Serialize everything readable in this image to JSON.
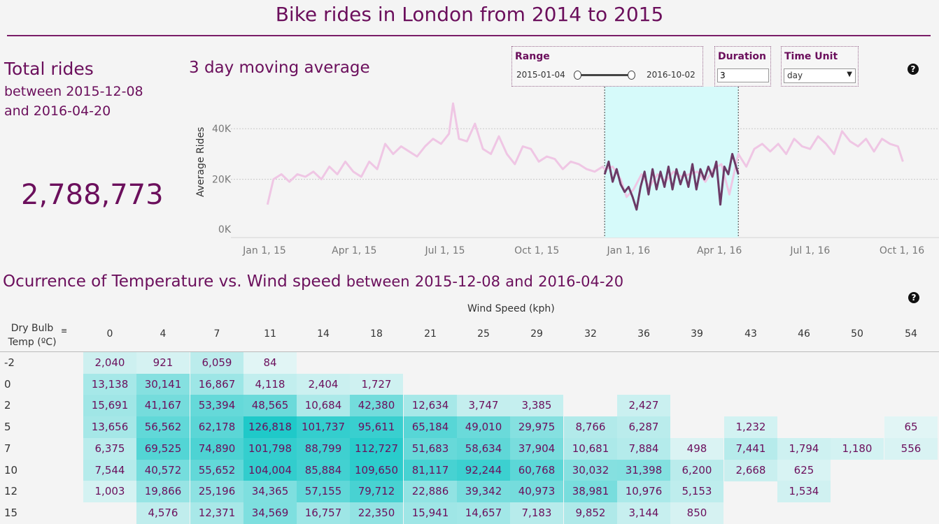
{
  "header": {
    "title": "Bike rides in London from 2014 to 2015"
  },
  "kpi": {
    "heading": "Total rides",
    "between_label": "between",
    "start_date": "2015-12-08",
    "and_label": "and",
    "end_date": "2016-04-20",
    "total": "2,788,773"
  },
  "controls": {
    "range": {
      "label": "Range",
      "start": "2015-01-04",
      "end": "2016-10-02"
    },
    "duration": {
      "label": "Duration",
      "value": "3"
    },
    "time_unit": {
      "label": "Time Unit",
      "value": "day"
    }
  },
  "heatmap_title": {
    "main": "Ocurrence of Temperature vs. Wind speed",
    "between": "between",
    "start": "2015-12-08",
    "and": "and",
    "end": "2016-04-20"
  },
  "colors": {
    "accent": "#6b0f5c",
    "highlight_band": "#d6fafa",
    "line_light": "#efc6e4",
    "line_dark": "#6b3a66",
    "heat_max": "#1fc9c9"
  },
  "chart_data": [
    {
      "type": "line",
      "title": "3 day moving average",
      "ylabel": "Average Rides",
      "xlabel": "",
      "ylim": [
        0,
        50000
      ],
      "y_ticks": [
        "0K",
        "20K",
        "40K"
      ],
      "x_ticks": [
        "Jan 1, 15",
        "Apr 1, 15",
        "Jul 1, 15",
        "Oct 1, 15",
        "Jan 1, 16",
        "Apr 1, 16",
        "Jul 1, 16",
        "Oct 1, 16"
      ],
      "grid": true,
      "highlight_range": [
        "2015-12-08",
        "2016-04-20"
      ],
      "series": [
        {
          "x": [
            "2015-01-04",
            "2015-01-10",
            "2015-01-18",
            "2015-01-26",
            "2015-02-03",
            "2015-02-11",
            "2015-02-19",
            "2015-02-27",
            "2015-03-07",
            "2015-03-15",
            "2015-03-23",
            "2015-03-31",
            "2015-04-08",
            "2015-04-16",
            "2015-04-24",
            "2015-05-02",
            "2015-05-10",
            "2015-05-18",
            "2015-05-26",
            "2015-06-03",
            "2015-06-11",
            "2015-06-19",
            "2015-06-27",
            "2015-07-05",
            "2015-07-09",
            "2015-07-15",
            "2015-07-23",
            "2015-07-31",
            "2015-08-08",
            "2015-08-16",
            "2015-08-24",
            "2015-09-01",
            "2015-09-09",
            "2015-09-17",
            "2015-09-25",
            "2015-10-03",
            "2015-10-11",
            "2015-10-19",
            "2015-10-27",
            "2015-11-04",
            "2015-11-12",
            "2015-11-20",
            "2015-11-28",
            "2015-12-06",
            "2015-12-08",
            "2015-12-16",
            "2015-12-24",
            "2015-12-30",
            "2016-01-06",
            "2016-01-14",
            "2016-01-22",
            "2016-01-30",
            "2016-02-07",
            "2016-02-15",
            "2016-02-23",
            "2016-03-02",
            "2016-03-10",
            "2016-03-18",
            "2016-03-26",
            "2016-04-03",
            "2016-04-11",
            "2016-04-20",
            "2016-04-28",
            "2016-05-06",
            "2016-05-14",
            "2016-05-22",
            "2016-05-30",
            "2016-06-07",
            "2016-06-15",
            "2016-06-23",
            "2016-07-01",
            "2016-07-09",
            "2016-07-17",
            "2016-07-25",
            "2016-08-02",
            "2016-08-10",
            "2016-08-18",
            "2016-08-26",
            "2016-09-03",
            "2016-09-11",
            "2016-09-19",
            "2016-09-27",
            "2016-10-02"
          ],
          "values": [
            10000,
            20000,
            22000,
            19000,
            22000,
            21000,
            23000,
            20000,
            25000,
            22000,
            27000,
            23000,
            21000,
            27000,
            24000,
            34000,
            30000,
            33000,
            31000,
            29000,
            33000,
            36000,
            34000,
            38000,
            50000,
            36000,
            35000,
            42000,
            32000,
            30000,
            37000,
            30000,
            26000,
            33000,
            32000,
            27000,
            29000,
            28000,
            24000,
            27000,
            26000,
            24000,
            23000,
            25000,
            24000,
            25000,
            20000,
            13000,
            16000,
            22000,
            17000,
            22000,
            19000,
            23000,
            21000,
            22000,
            23000,
            19000,
            24000,
            26000,
            14000,
            30000,
            25000,
            32000,
            34000,
            31000,
            34000,
            30000,
            36000,
            33000,
            32000,
            37000,
            34000,
            30000,
            39000,
            35000,
            33000,
            36000,
            31000,
            36000,
            34000,
            33000,
            27000
          ],
          "highlight_x": [
            "2015-12-08",
            "2015-12-12",
            "2015-12-16",
            "2015-12-20",
            "2015-12-24",
            "2015-12-28",
            "2016-01-01",
            "2016-01-05",
            "2016-01-09",
            "2016-01-13",
            "2016-01-17",
            "2016-01-21",
            "2016-01-25",
            "2016-01-29",
            "2016-02-02",
            "2016-02-06",
            "2016-02-10",
            "2016-02-14",
            "2016-02-18",
            "2016-02-22",
            "2016-02-26",
            "2016-03-01",
            "2016-03-05",
            "2016-03-09",
            "2016-03-13",
            "2016-03-17",
            "2016-03-21",
            "2016-03-25",
            "2016-03-29",
            "2016-04-02",
            "2016-04-06",
            "2016-04-10",
            "2016-04-14",
            "2016-04-20"
          ],
          "highlight_values": [
            22000,
            27000,
            19000,
            24000,
            18000,
            15000,
            17000,
            13000,
            8000,
            17000,
            23000,
            14000,
            24000,
            16000,
            23000,
            17000,
            25000,
            16000,
            24000,
            18000,
            23000,
            17000,
            26000,
            16000,
            24000,
            20000,
            25000,
            21000,
            27000,
            10000,
            25000,
            22000,
            30000,
            22000
          ]
        }
      ]
    },
    {
      "type": "heatmap",
      "xlabel": "Wind Speed (kph)",
      "ylabel": "Dry Bulb Temp (ºC)",
      "x_categories": [
        "0",
        "4",
        "7",
        "11",
        "14",
        "18",
        "21",
        "25",
        "29",
        "32",
        "36",
        "39",
        "43",
        "46",
        "50",
        "54"
      ],
      "y_categories": [
        "-2",
        "0",
        "2",
        "5",
        "7",
        "10",
        "12",
        "15"
      ],
      "values": [
        [
          "2,040",
          "921",
          "6,059",
          "84",
          "",
          "",
          "",
          "",
          "",
          "",
          "",
          "",
          "",
          "",
          "",
          ""
        ],
        [
          "13,138",
          "30,141",
          "16,867",
          "4,118",
          "2,404",
          "1,727",
          "",
          "",
          "",
          "",
          "",
          "",
          "",
          "",
          "",
          ""
        ],
        [
          "15,691",
          "41,167",
          "53,394",
          "48,565",
          "10,684",
          "42,380",
          "12,634",
          "3,747",
          "3,385",
          "",
          "2,427",
          "",
          "",
          "",
          "",
          ""
        ],
        [
          "13,656",
          "56,562",
          "62,178",
          "126,818",
          "101,737",
          "95,611",
          "65,184",
          "49,010",
          "29,975",
          "8,766",
          "6,287",
          "",
          "1,232",
          "",
          "",
          "65"
        ],
        [
          "6,375",
          "69,525",
          "74,890",
          "101,798",
          "88,799",
          "112,727",
          "51,683",
          "58,634",
          "37,904",
          "10,681",
          "7,884",
          "498",
          "7,441",
          "1,794",
          "1,180",
          "556"
        ],
        [
          "7,544",
          "40,572",
          "55,652",
          "104,004",
          "85,884",
          "109,650",
          "81,117",
          "92,244",
          "60,768",
          "30,032",
          "31,398",
          "6,200",
          "2,668",
          "625",
          "",
          ""
        ],
        [
          "1,003",
          "19,866",
          "25,196",
          "34,365",
          "57,155",
          "79,712",
          "22,886",
          "39,342",
          "40,973",
          "38,981",
          "10,976",
          "5,153",
          "",
          "1,534",
          "",
          ""
        ],
        [
          "",
          "4,576",
          "12,371",
          "34,569",
          "16,757",
          "22,350",
          "15,941",
          "14,657",
          "7,183",
          "9,852",
          "3,144",
          "850",
          "",
          "",
          "",
          ""
        ]
      ]
    }
  ]
}
